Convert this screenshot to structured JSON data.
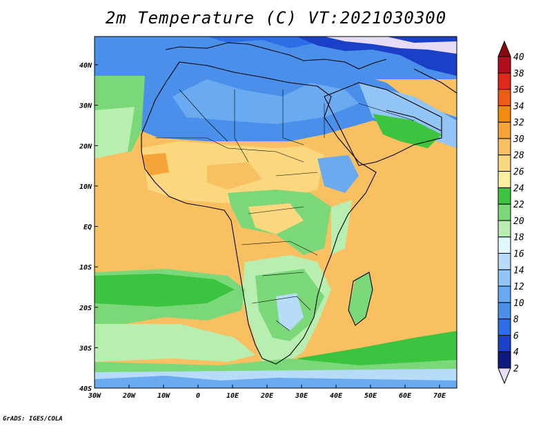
{
  "title": "2m Temperature (C) VT:2021030300",
  "credit": "GrADS: IGES/COLA",
  "chart_data": {
    "type": "heatmap",
    "title": "2m Temperature (C) VT:2021030300",
    "variable": "2m Temperature",
    "units": "C",
    "valid_time": "2021030300",
    "x_axis": {
      "range": [
        -30,
        75
      ],
      "ticks": [
        -30,
        -20,
        -10,
        0,
        10,
        20,
        30,
        40,
        50,
        60,
        70
      ],
      "tick_labels": [
        "30W",
        "20W",
        "10W",
        "0",
        "10E",
        "20E",
        "30E",
        "40E",
        "50E",
        "60E",
        "70E"
      ]
    },
    "y_axis": {
      "range": [
        -40,
        47
      ],
      "ticks": [
        40,
        30,
        20,
        10,
        0,
        -10,
        -20,
        -30,
        -40
      ],
      "tick_labels": [
        "40N",
        "30N",
        "20N",
        "10N",
        "EQ",
        "10S",
        "20S",
        "30S",
        "40S"
      ]
    },
    "colorbar": {
      "levels": [
        2,
        4,
        6,
        8,
        10,
        12,
        14,
        16,
        18,
        20,
        22,
        24,
        26,
        28,
        30,
        32,
        34,
        36,
        38,
        40
      ],
      "colors": [
        "#e6dcf5",
        "#0d1a80",
        "#1a40c8",
        "#2d6ee6",
        "#4a90ea",
        "#6aaaf0",
        "#92c4f5",
        "#b6dcf8",
        "#e2f6ff",
        "#b8eeb0",
        "#7ad878",
        "#3cc440",
        "#fbf0a0",
        "#fbd880",
        "#f8c060",
        "#f5a538",
        "#f58a10",
        "#f05a14",
        "#e0281c",
        "#b0101a",
        "#8a0a10"
      ]
    },
    "grid": false,
    "legend": "right"
  },
  "icons": {
    "colorbar_low": "triangle-down",
    "colorbar_high": "triangle-up"
  }
}
